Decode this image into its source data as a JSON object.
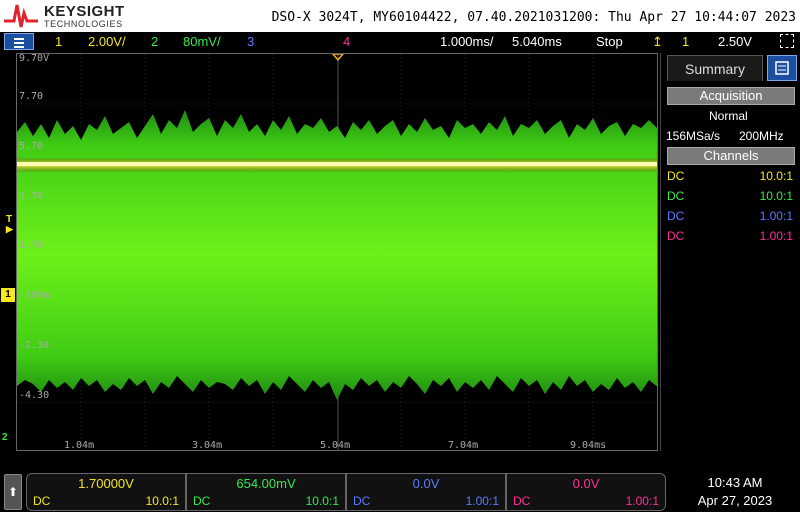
{
  "header": {
    "brand": "KEYSIGHT",
    "brand_sub": "TECHNOLOGIES",
    "info": "DSO-X 3024T, MY60104422, 07.40.2021031200: Thu Apr 27 10:44:07 2023"
  },
  "statusbar": {
    "ch1_num": "1",
    "ch1_scale": "2.00V/",
    "ch2_num": "2",
    "ch2_scale": "80mV/",
    "ch3_num": "3",
    "ch4_num": "4",
    "timebase": "1.000ms/",
    "delay": "5.040ms",
    "run_state": "Stop",
    "trig_source": "1",
    "trig_level": "2.50V"
  },
  "graticule": {
    "y_labels": [
      "9.70V",
      "7.70",
      "5.70",
      "3.70",
      "1.70",
      "-300m",
      "-2.30",
      "-4.30"
    ],
    "x_labels": [
      "1.04m",
      "3.04m",
      "5.04m",
      "7.04m",
      "9.04ms"
    ]
  },
  "markers": {
    "trigger": "T",
    "ch1": "1",
    "ch2": "2"
  },
  "sidepanel": {
    "tab_summary": "Summary",
    "acquisition_title": "Acquisition",
    "acq_mode": "Normal",
    "sample_rate": "156MSa/s",
    "bandwidth": "200MHz",
    "channels_title": "Channels",
    "channels": [
      {
        "coupling": "DC",
        "probe": "10.0:1",
        "color": "#f5e61e"
      },
      {
        "coupling": "DC",
        "probe": "10.0:1",
        "color": "#39e84a"
      },
      {
        "coupling": "DC",
        "probe": "1.00:1",
        "color": "#5a7cff"
      },
      {
        "coupling": "DC",
        "probe": "1.00:1",
        "color": "#ff2d9a"
      }
    ]
  },
  "bottom": {
    "channels": [
      {
        "value": "1.70000V",
        "coupling": "DC",
        "probe": "10.0:1",
        "color": "#f5e61e"
      },
      {
        "value": "654.00mV",
        "coupling": "DC",
        "probe": "10.0:1",
        "color": "#39e84a"
      },
      {
        "value": "0.0V",
        "coupling": "DC",
        "probe": "1.00:1",
        "color": "#5a7cff"
      },
      {
        "value": "0.0V",
        "coupling": "DC",
        "probe": "1.00:1",
        "color": "#ff2d9a"
      }
    ],
    "time": "10:43 AM",
    "date": "Apr 27, 2023"
  },
  "colors": {
    "ch1": "#f5e61e",
    "ch2": "#39e84a",
    "ch3": "#5a7cff",
    "ch4": "#ff2d9a",
    "trigger_marker": "#f5a623",
    "accent": "#1b4fa0"
  }
}
